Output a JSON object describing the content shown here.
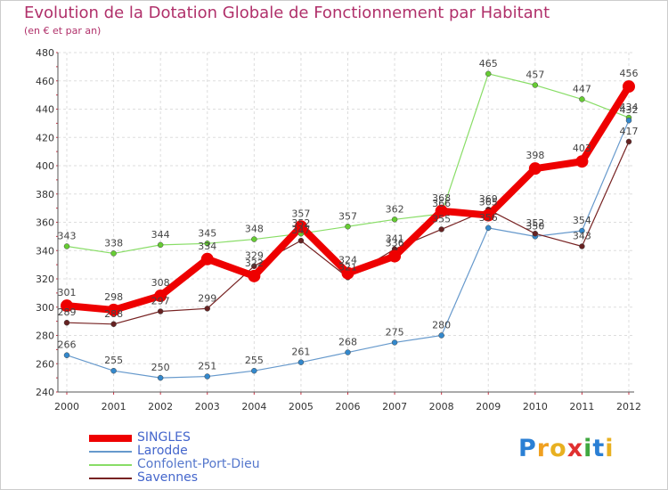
{
  "title": "Evolution de la Dotation Globale de Fonctionnement par Habitant",
  "subtitle": "(en € et par an)",
  "logo": {
    "text": "Proxiti",
    "letters": [
      "P",
      "r",
      "o",
      "x",
      "i",
      "t",
      "i"
    ],
    "colors": [
      "#2a7fd4",
      "#f0a020",
      "#e8b020",
      "#e03030",
      "#40a840",
      "#2a7fd4",
      "#e8b020"
    ]
  },
  "chart_data": {
    "type": "line",
    "title": "Evolution de la Dotation Globale de Fonctionnement par Habitant",
    "subtitle": "(en € et par an)",
    "x": [
      "2000",
      "2001",
      "2002",
      "2003",
      "2004",
      "2005",
      "2006",
      "2007",
      "2008",
      "2009",
      "2010",
      "2011",
      "2012"
    ],
    "ylim": [
      240,
      480
    ],
    "yticks": [
      240,
      260,
      280,
      300,
      320,
      340,
      360,
      380,
      400,
      420,
      440,
      460,
      480
    ],
    "grid": true,
    "legend_position": "bottom-left",
    "series": [
      {
        "name": "Confolent-Port-Dieu",
        "color": "#88dd66",
        "point_color": "#66cc33",
        "width": 1.2,
        "label_pos": "above",
        "values": [
          343,
          338,
          344,
          345,
          348,
          352,
          357,
          362,
          366,
          465,
          457,
          447,
          434
        ]
      },
      {
        "name": "Larodde",
        "color": "#6699cc",
        "point_color": "#3388cc",
        "width": 1.2,
        "label_pos": "above",
        "values": [
          266,
          255,
          250,
          251,
          255,
          261,
          268,
          275,
          280,
          356,
          350,
          354,
          432
        ]
      },
      {
        "name": "Savennes",
        "color": "#772222",
        "point_color": "#662222",
        "width": 1.2,
        "label_pos": "above",
        "values": [
          289,
          288,
          297,
          299,
          329,
          347,
          321,
          341,
          355,
          369,
          352,
          343,
          417
        ]
      },
      {
        "name": "SINGLES",
        "color": "#ee0000",
        "point_color": "#ee0000",
        "width": 8,
        "label_pos": "above",
        "values": [
          301,
          298,
          308,
          334,
          322,
          357,
          324,
          336,
          368,
          365,
          398,
          403,
          456
        ]
      }
    ],
    "legend_order": [
      "SINGLES",
      "Larodde",
      "Confolent-Port-Dieu",
      "Savennes"
    ]
  }
}
